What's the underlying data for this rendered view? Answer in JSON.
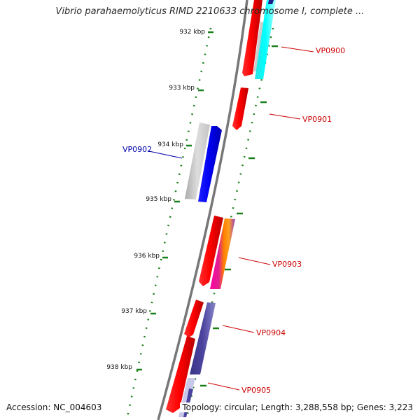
{
  "title": "Vibrio parahaemolyticus RIMD 2210633 chromosome I, complete ...",
  "footer": {
    "accession": "Accession: NC_004603",
    "summary": "Topology: circular; Length: 3,288,558 bp; Genes: 3,223"
  },
  "colors": {
    "backbone": "#777777",
    "tick": "#1a7f1a",
    "red_label": "#cc0000",
    "blue_label": "#0000aa"
  },
  "ticks": [
    {
      "label": "932 kbp"
    },
    {
      "label": "933 kbp"
    },
    {
      "label": "934 kbp"
    },
    {
      "label": "935 kbp"
    },
    {
      "label": "936 kbp"
    },
    {
      "label": "937 kbp"
    },
    {
      "label": "938 kbp"
    }
  ],
  "genes": [
    {
      "label": "VP0900",
      "color": "#cc0000"
    },
    {
      "label": "VP0901",
      "color": "#cc0000"
    },
    {
      "label": "VP0902",
      "color": "#0000aa"
    },
    {
      "label": "VP0903",
      "color": "#cc0000"
    },
    {
      "label": "VP0904",
      "color": "#cc0000"
    },
    {
      "label": "VP0905",
      "color": "#cc0000"
    }
  ]
}
